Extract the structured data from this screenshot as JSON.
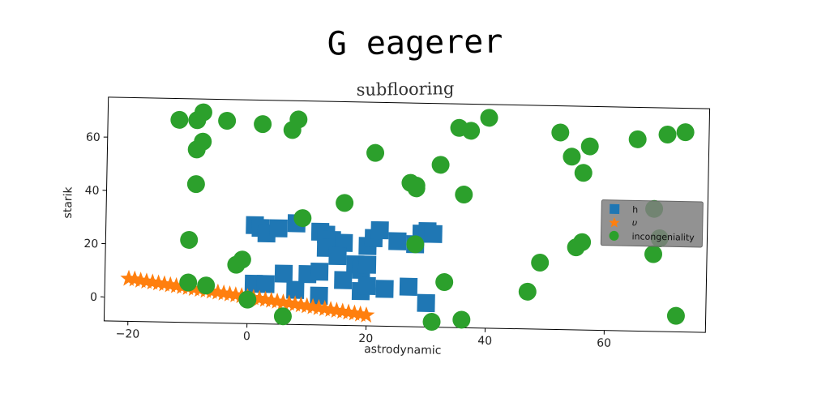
{
  "chart_data": {
    "type": "scatter",
    "title": "G eagerer",
    "subtitle": "subflooring",
    "xlabel": "astrodynamic",
    "ylabel": "starik",
    "xlim": [
      -24,
      77
    ],
    "ylim": [
      -9,
      75
    ],
    "xticks": [
      -20,
      0,
      20,
      40,
      60
    ],
    "yticks": [
      0,
      20,
      40,
      60
    ],
    "legend_position": "center-right",
    "grid": false,
    "series": [
      {
        "name": "h",
        "marker": "square",
        "color": "#1f77b4",
        "points": [
          [
            1,
            28
          ],
          [
            2,
            27
          ],
          [
            3,
            25
          ],
          [
            5,
            27
          ],
          [
            8,
            29
          ],
          [
            12,
            26
          ],
          [
            13,
            25
          ],
          [
            14,
            23
          ],
          [
            16,
            22
          ],
          [
            20,
            21
          ],
          [
            21,
            24
          ],
          [
            22,
            27
          ],
          [
            13,
            20
          ],
          [
            15,
            17
          ],
          [
            18,
            14
          ],
          [
            19,
            12
          ],
          [
            20,
            14
          ],
          [
            16,
            8
          ],
          [
            19,
            4
          ],
          [
            20,
            6
          ],
          [
            23,
            5
          ],
          [
            27,
            6
          ],
          [
            25,
            23
          ],
          [
            28,
            22
          ],
          [
            29,
            26
          ],
          [
            30,
            27
          ],
          [
            31,
            26
          ],
          [
            1,
            6
          ],
          [
            3,
            6
          ],
          [
            6,
            10
          ],
          [
            8,
            4
          ],
          [
            10,
            10
          ],
          [
            12,
            11
          ],
          [
            12,
            2
          ],
          [
            30,
            0
          ]
        ]
      },
      {
        "name": "υ",
        "marker": "star",
        "color": "#ff7f0e",
        "points": [
          [
            -20,
            7
          ],
          [
            -19,
            6.8
          ],
          [
            -18,
            6.4
          ],
          [
            -17,
            6.1
          ],
          [
            -16,
            5.8
          ],
          [
            -15,
            5.5
          ],
          [
            -14,
            5.2
          ],
          [
            -13,
            4.9
          ],
          [
            -12,
            4.6
          ],
          [
            -11,
            4.3
          ],
          [
            -10,
            4
          ],
          [
            -9,
            3.7
          ],
          [
            -8,
            3.4
          ],
          [
            -7,
            3.1
          ],
          [
            -6,
            2.8
          ],
          [
            -5,
            2.5
          ],
          [
            -4,
            2.2
          ],
          [
            -3,
            1.9
          ],
          [
            -2,
            1.6
          ],
          [
            -1,
            1.3
          ],
          [
            0,
            1
          ],
          [
            1,
            0.7
          ],
          [
            2,
            0.4
          ],
          [
            3,
            0.1
          ],
          [
            4,
            -0.2
          ],
          [
            5,
            -0.5
          ],
          [
            6,
            -0.8
          ],
          [
            7,
            -1.1
          ],
          [
            8,
            -1.4
          ],
          [
            9,
            -1.7
          ],
          [
            10,
            -2
          ],
          [
            11,
            -2.3
          ],
          [
            12,
            -2.6
          ],
          [
            13,
            -2.9
          ],
          [
            14,
            -3.2
          ],
          [
            15,
            -3.5
          ],
          [
            16,
            -3.8
          ],
          [
            17,
            -4.1
          ],
          [
            18,
            -4.4
          ],
          [
            19,
            -4.7
          ],
          [
            20,
            -5
          ]
        ]
      },
      {
        "name": "incongeniality",
        "marker": "circle",
        "color": "#2ca02c",
        "points": [
          [
            -12,
            67
          ],
          [
            -9,
            67
          ],
          [
            -8,
            70
          ],
          [
            -4,
            67
          ],
          [
            2,
            66
          ],
          [
            7,
            64
          ],
          [
            8,
            68
          ],
          [
            -9,
            56
          ],
          [
            -8,
            59
          ],
          [
            -9,
            43
          ],
          [
            -10,
            22
          ],
          [
            -10,
            6
          ],
          [
            -7,
            5
          ],
          [
            -2,
            13
          ],
          [
            -1,
            15
          ],
          [
            0,
            0
          ],
          [
            6,
            -6
          ],
          [
            9,
            31
          ],
          [
            16,
            37
          ],
          [
            21,
            56
          ],
          [
            27,
            45
          ],
          [
            28,
            43
          ],
          [
            28,
            44
          ],
          [
            28,
            22
          ],
          [
            32,
            52
          ],
          [
            35,
            66
          ],
          [
            37,
            65
          ],
          [
            40,
            70
          ],
          [
            36,
            41
          ],
          [
            33,
            8
          ],
          [
            31,
            -7
          ],
          [
            36,
            -6
          ],
          [
            47,
            5
          ],
          [
            49,
            16
          ],
          [
            52,
            65
          ],
          [
            54,
            56
          ],
          [
            57,
            60
          ],
          [
            56,
            50
          ],
          [
            55,
            22
          ],
          [
            56,
            24
          ],
          [
            65,
            63
          ],
          [
            68,
            37
          ],
          [
            69,
            26
          ],
          [
            68,
            20
          ],
          [
            70,
            65
          ],
          [
            73,
            66
          ],
          [
            72,
            -3
          ]
        ]
      }
    ]
  }
}
